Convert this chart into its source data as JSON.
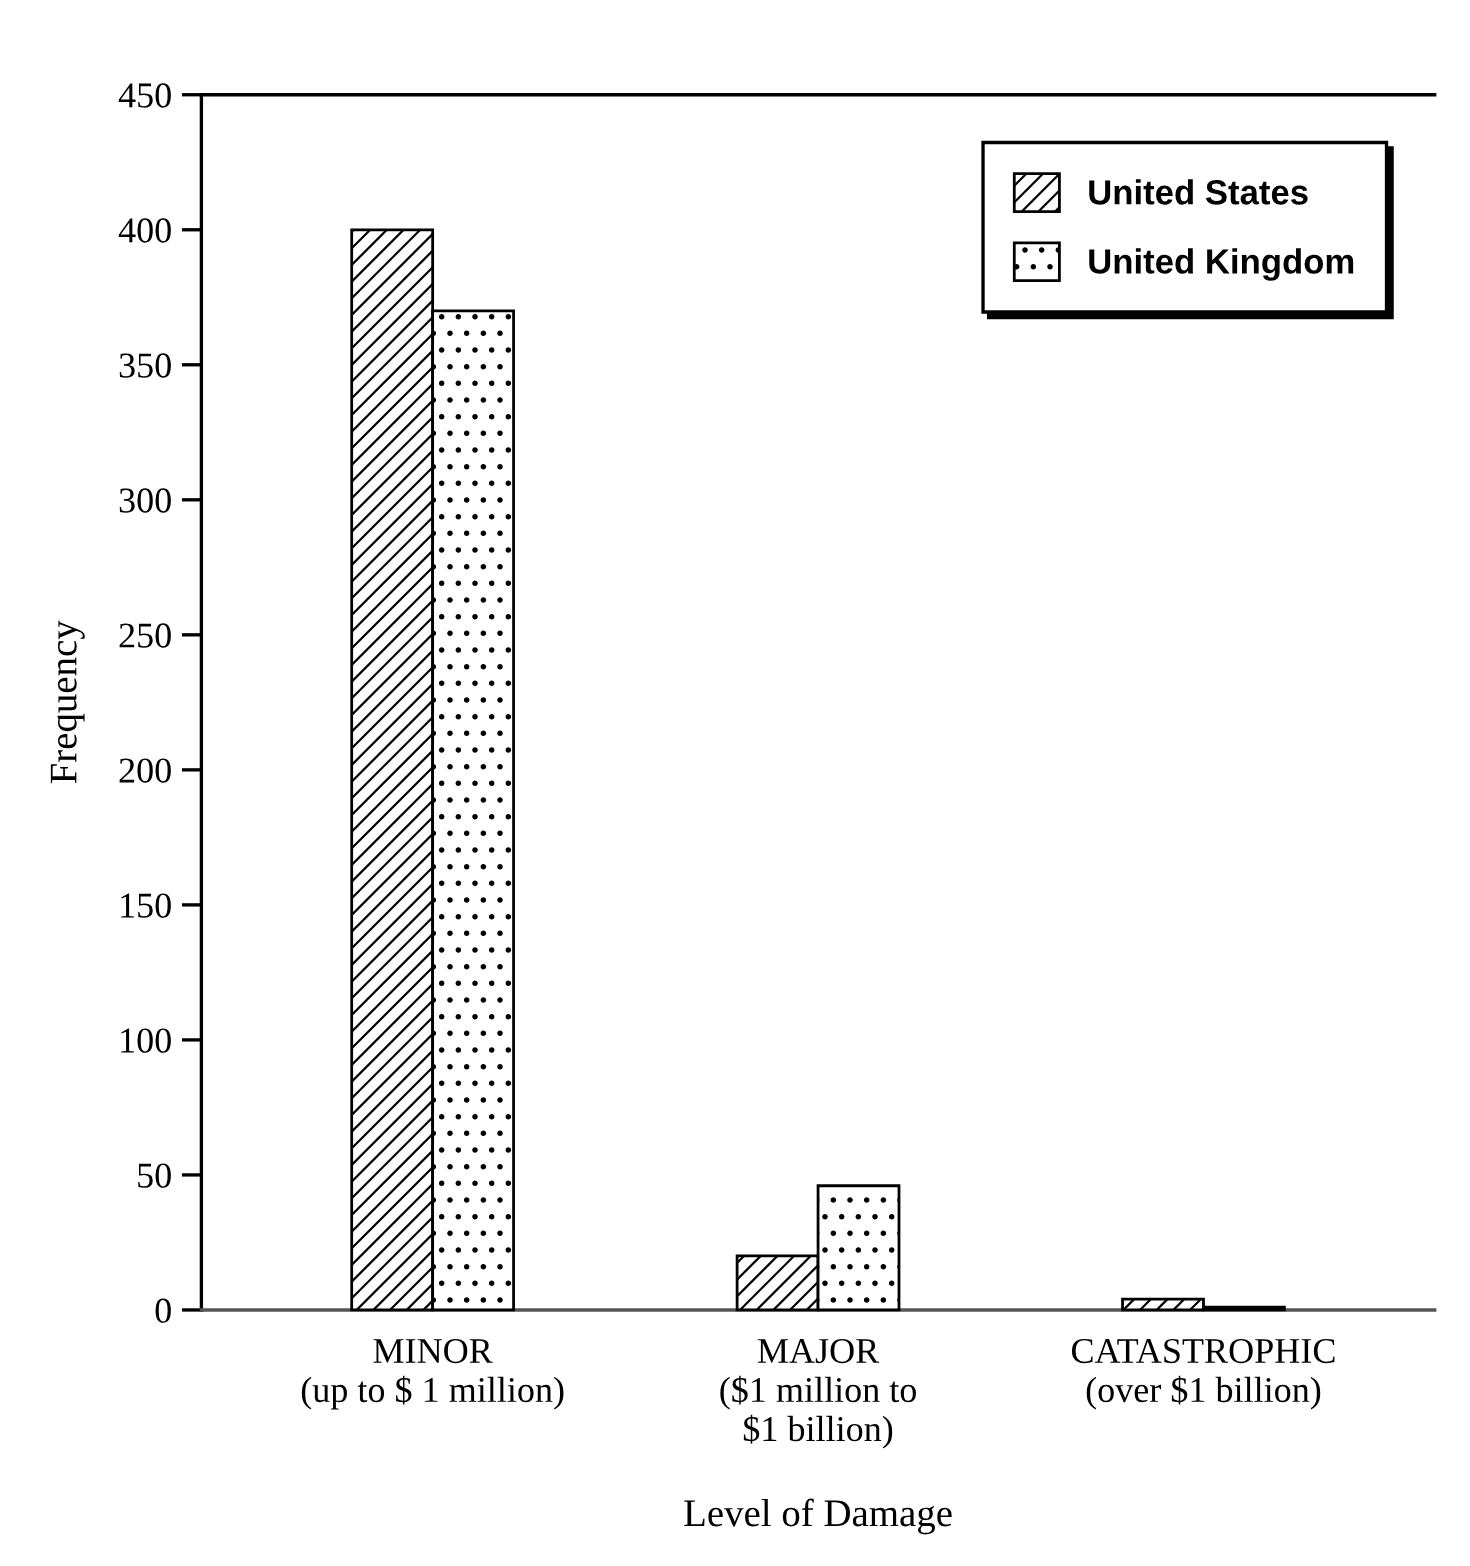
{
  "chart_data": {
    "type": "bar",
    "xlabel": "Level of Damage",
    "ylabel": "Frequency",
    "categories": [
      "MINOR\n(up to $ 1 million)",
      "MAJOR\n($1 million to\n$1 billion)",
      "CATASTROPHIC\n(over $1 billion)"
    ],
    "series": [
      {
        "name": "United States",
        "color": "#000000",
        "values": [
          400,
          20,
          4
        ]
      },
      {
        "name": "United Kingdom",
        "color": "#000000",
        "values": [
          370,
          46,
          1
        ]
      }
    ],
    "ylim": [
      0,
      450
    ],
    "yticks": [
      0,
      50,
      100,
      150,
      200,
      250,
      300,
      350,
      400,
      450
    ],
    "grid": false,
    "legend": "top right"
  }
}
